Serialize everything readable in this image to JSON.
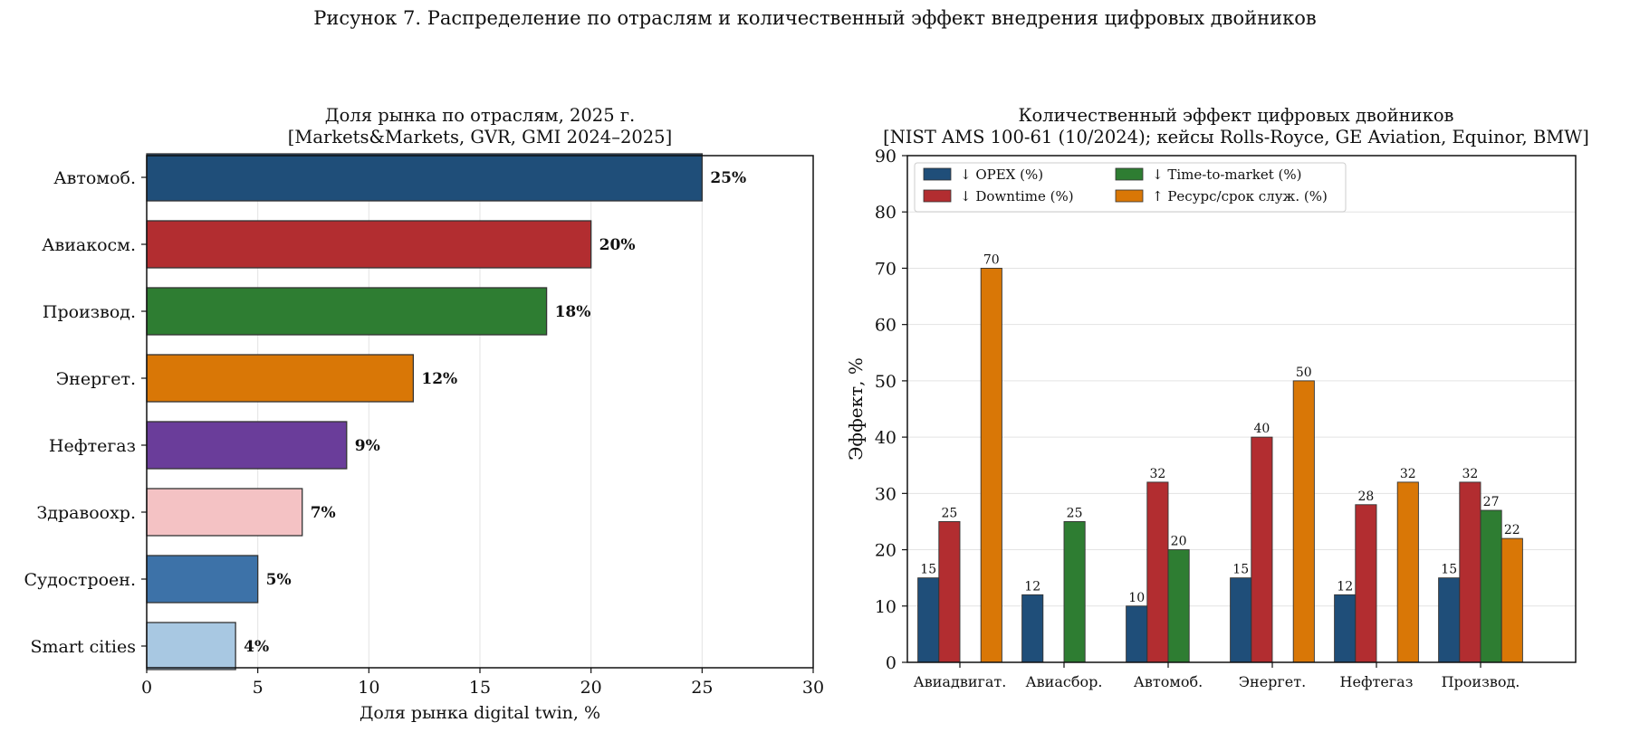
{
  "figure": {
    "title": "Рисунок 7. Распределение по отраслям и количественный эффект внедрения цифровых двойников"
  },
  "chart_data": [
    {
      "type": "bar",
      "orientation": "horizontal",
      "title_lines": [
        "Доля рынка по отраслям, 2025 г.",
        "[Markets&Markets, GVR, GMI 2024–2025]"
      ],
      "xlabel": "Доля рынка digital twin, %",
      "ylabel": "",
      "xlim": [
        0,
        30
      ],
      "xticks": [
        0,
        5,
        10,
        15,
        20,
        25,
        30
      ],
      "grid": "vertical",
      "categories": [
        "Автомоб.",
        "Авиакосм.",
        "Производ.",
        "Энергет.",
        "Нефтегаз",
        "Здравоохр.",
        "Судостроен.",
        "Smart cities"
      ],
      "values": [
        25,
        20,
        18,
        12,
        9,
        7,
        5,
        4
      ],
      "data_labels": [
        "25%",
        "20%",
        "18%",
        "12%",
        "9%",
        "7%",
        "5%",
        "4%"
      ],
      "colors": [
        "#1f4e79",
        "#b22d30",
        "#2e7d32",
        "#d97706",
        "#6a3d9a",
        "#f4c2c4",
        "#3d72a8",
        "#a8c8e2"
      ]
    },
    {
      "type": "bar",
      "orientation": "vertical",
      "title_lines": [
        "Количественный эффект цифровых двойников",
        "[NIST AMS 100-61 (10/2024); кейсы Rolls-Royce, GE Aviation, Equinor, BMW]"
      ],
      "xlabel": "",
      "ylabel": "Эффект, %",
      "ylim": [
        0,
        90
      ],
      "yticks": [
        0,
        10,
        20,
        30,
        40,
        50,
        60,
        70,
        80,
        90
      ],
      "grid": "horizontal",
      "legend_position": "top-left",
      "categories": [
        "Авиадвигат.",
        "Авиасбор.",
        "Автомоб.",
        "Энергет.",
        "Нефтегаз",
        "Производ."
      ],
      "series": [
        {
          "name": "↓ OPEX (%)",
          "color": "#1f4e79",
          "values": [
            15,
            12,
            10,
            15,
            12,
            15
          ]
        },
        {
          "name": "↓ Downtime (%)",
          "color": "#b22d30",
          "values": [
            25,
            null,
            32,
            40,
            28,
            32
          ]
        },
        {
          "name": "↓ Time-to-market (%)",
          "color": "#2e7d32",
          "values": [
            null,
            25,
            20,
            null,
            null,
            27
          ]
        },
        {
          "name": "↑ Ресурс/срок служ. (%)",
          "color": "#d97706",
          "values": [
            70,
            null,
            null,
            50,
            32,
            22
          ]
        }
      ]
    }
  ]
}
